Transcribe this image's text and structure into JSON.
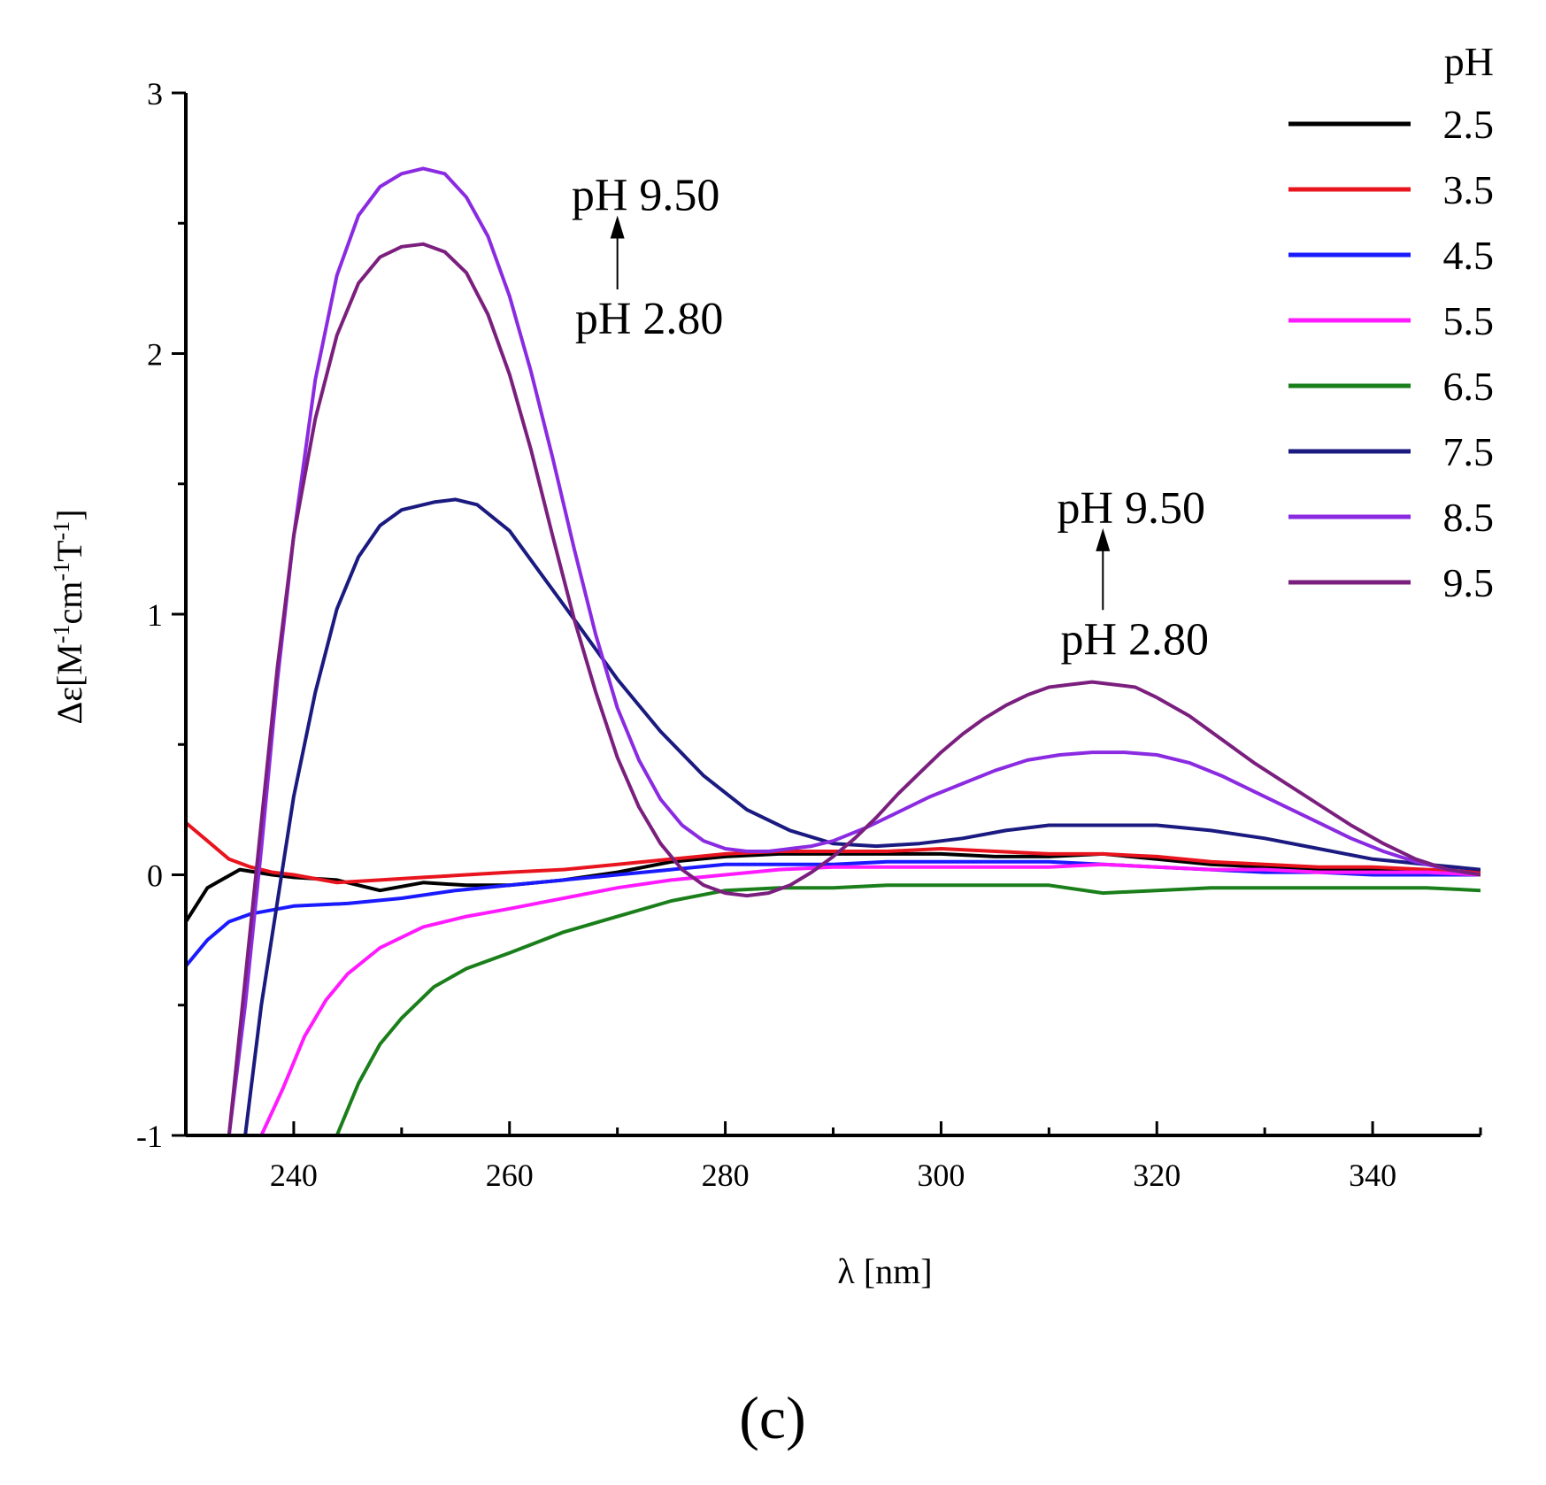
{
  "chart_data": {
    "type": "line",
    "title": "",
    "xlabel": "λ [nm]",
    "ylabel": "Δε[M-1cm-1T-1]",
    "xlim": [
      230,
      350
    ],
    "ylim": [
      -1,
      3
    ],
    "x_ticks": [
      240,
      260,
      280,
      300,
      320,
      340
    ],
    "y_ticks": [
      -1,
      0,
      1,
      2,
      3
    ],
    "grid": false,
    "legend_title": "pH",
    "legend_position": "top-right",
    "series": [
      {
        "name": "2.5",
        "color": "#000000",
        "x": [
          230,
          232,
          235,
          238,
          240,
          244,
          248,
          252,
          256,
          260,
          265,
          270,
          275,
          280,
          285,
          290,
          295,
          300,
          305,
          310,
          315,
          320,
          325,
          330,
          335,
          340,
          345,
          350
        ],
        "y": [
          -0.18,
          -0.05,
          0.02,
          0.0,
          -0.01,
          -0.02,
          -0.06,
          -0.03,
          -0.04,
          -0.04,
          -0.02,
          0.01,
          0.05,
          0.07,
          0.08,
          0.08,
          0.08,
          0.08,
          0.07,
          0.07,
          0.08,
          0.06,
          0.04,
          0.03,
          0.02,
          0.02,
          0.01,
          0.0
        ]
      },
      {
        "name": "3.5",
        "color": "#e8141e",
        "x": [
          230,
          232,
          234,
          236,
          238,
          240,
          244,
          248,
          252,
          256,
          260,
          265,
          270,
          275,
          280,
          285,
          290,
          295,
          300,
          305,
          310,
          315,
          320,
          325,
          330,
          335,
          340,
          345,
          350
        ],
        "y": [
          0.2,
          0.13,
          0.06,
          0.03,
          0.01,
          0.0,
          -0.03,
          -0.02,
          -0.01,
          0.0,
          0.01,
          0.02,
          0.04,
          0.06,
          0.08,
          0.09,
          0.09,
          0.09,
          0.1,
          0.09,
          0.08,
          0.08,
          0.07,
          0.05,
          0.04,
          0.03,
          0.03,
          0.02,
          0.01
        ]
      },
      {
        "name": "4.5",
        "color": "#1a1aff",
        "x": [
          230,
          232,
          234,
          236,
          240,
          245,
          250,
          255,
          260,
          265,
          270,
          275,
          280,
          285,
          290,
          295,
          300,
          305,
          310,
          315,
          320,
          325,
          330,
          335,
          340,
          345,
          350
        ],
        "y": [
          -0.35,
          -0.25,
          -0.18,
          -0.15,
          -0.12,
          -0.11,
          -0.09,
          -0.06,
          -0.04,
          -0.02,
          0.0,
          0.02,
          0.04,
          0.04,
          0.04,
          0.05,
          0.05,
          0.05,
          0.05,
          0.04,
          0.03,
          0.02,
          0.01,
          0.01,
          0.0,
          0.0,
          0.0
        ]
      },
      {
        "name": "5.5",
        "color": "#ff1aff",
        "x": [
          237,
          239,
          241,
          243,
          245,
          248,
          252,
          256,
          260,
          265,
          270,
          275,
          280,
          285,
          290,
          295,
          300,
          305,
          310,
          315,
          320,
          325,
          330,
          335,
          340,
          345,
          350
        ],
        "y": [
          -1.0,
          -0.82,
          -0.62,
          -0.48,
          -0.38,
          -0.28,
          -0.2,
          -0.16,
          -0.13,
          -0.09,
          -0.05,
          -0.02,
          0.0,
          0.02,
          0.03,
          0.03,
          0.03,
          0.03,
          0.03,
          0.04,
          0.03,
          0.02,
          0.02,
          0.01,
          0.01,
          0.01,
          0.0
        ]
      },
      {
        "name": "6.5",
        "color": "#1a7f1a",
        "x": [
          244,
          246,
          248,
          250,
          253,
          256,
          260,
          265,
          270,
          275,
          280,
          285,
          290,
          295,
          300,
          305,
          310,
          315,
          320,
          325,
          330,
          335,
          340,
          345,
          350
        ],
        "y": [
          -1.0,
          -0.8,
          -0.65,
          -0.55,
          -0.43,
          -0.36,
          -0.3,
          -0.22,
          -0.16,
          -0.1,
          -0.06,
          -0.05,
          -0.05,
          -0.04,
          -0.04,
          -0.04,
          -0.04,
          -0.07,
          -0.06,
          -0.05,
          -0.05,
          -0.05,
          -0.05,
          -0.05,
          -0.06
        ]
      },
      {
        "name": "7.5",
        "color": "#1a1a80",
        "x": [
          235.5,
          237,
          238.5,
          240,
          242,
          244,
          246,
          248,
          250,
          253,
          255,
          257,
          260,
          263,
          266,
          270,
          274,
          278,
          282,
          286,
          290,
          294,
          298,
          302,
          306,
          310,
          315,
          320,
          325,
          330,
          335,
          340,
          345,
          350
        ],
        "y": [
          -1.0,
          -0.5,
          -0.1,
          0.3,
          0.7,
          1.02,
          1.22,
          1.34,
          1.4,
          1.43,
          1.44,
          1.42,
          1.32,
          1.15,
          0.98,
          0.75,
          0.55,
          0.38,
          0.25,
          0.17,
          0.12,
          0.11,
          0.12,
          0.14,
          0.17,
          0.19,
          0.19,
          0.19,
          0.17,
          0.14,
          0.1,
          0.06,
          0.04,
          0.02
        ]
      },
      {
        "name": "8.5",
        "color": "#8a2be2",
        "x": [
          234,
          235.5,
          237,
          238.5,
          240,
          242,
          244,
          246,
          248,
          250,
          252,
          254,
          256,
          258,
          260,
          262,
          264,
          266,
          268,
          270,
          272,
          274,
          276,
          278,
          280,
          282,
          284,
          286,
          288,
          290,
          293,
          296,
          299,
          302,
          305,
          308,
          311,
          314,
          317,
          320,
          323,
          326,
          329,
          332,
          335,
          338,
          341,
          344,
          347,
          350
        ],
        "y": [
          -1.0,
          -0.5,
          0.1,
          0.75,
          1.3,
          1.9,
          2.3,
          2.53,
          2.64,
          2.69,
          2.71,
          2.69,
          2.6,
          2.45,
          2.22,
          1.93,
          1.6,
          1.25,
          0.92,
          0.64,
          0.44,
          0.29,
          0.19,
          0.13,
          0.1,
          0.09,
          0.09,
          0.1,
          0.11,
          0.13,
          0.18,
          0.24,
          0.3,
          0.35,
          0.4,
          0.44,
          0.46,
          0.47,
          0.47,
          0.46,
          0.43,
          0.38,
          0.32,
          0.26,
          0.2,
          0.14,
          0.09,
          0.05,
          0.02,
          0.0
        ]
      },
      {
        "name": "9.5",
        "color": "#7b1f7e",
        "x": [
          234,
          235.5,
          237,
          238.5,
          240,
          242,
          244,
          246,
          248,
          250,
          252,
          254,
          256,
          258,
          260,
          262,
          264,
          266,
          268,
          270,
          272,
          274,
          276,
          278,
          280,
          282,
          284,
          286,
          288,
          290,
          292,
          294,
          296,
          298,
          300,
          302,
          304,
          306,
          308,
          310,
          312,
          314,
          316,
          318,
          320,
          323,
          326,
          329,
          332,
          335,
          338,
          341,
          344,
          347,
          350
        ],
        "y": [
          -1.0,
          -0.4,
          0.2,
          0.8,
          1.3,
          1.75,
          2.07,
          2.27,
          2.37,
          2.41,
          2.42,
          2.39,
          2.31,
          2.15,
          1.92,
          1.63,
          1.3,
          0.98,
          0.7,
          0.45,
          0.26,
          0.12,
          0.02,
          -0.04,
          -0.07,
          -0.08,
          -0.07,
          -0.04,
          0.01,
          0.07,
          0.14,
          0.22,
          0.31,
          0.39,
          0.47,
          0.54,
          0.6,
          0.65,
          0.69,
          0.72,
          0.73,
          0.74,
          0.73,
          0.72,
          0.68,
          0.61,
          0.52,
          0.43,
          0.35,
          0.27,
          0.19,
          0.12,
          0.06,
          0.02,
          0.0
        ]
      }
    ],
    "annotations": [
      {
        "text_top": "pH 9.50",
        "text_bottom": "pH 2.80",
        "x": 270,
        "y_top": 2.55,
        "y_bottom": 2.28
      },
      {
        "text_top": "pH 9.50",
        "text_bottom": "pH 2.80",
        "x": 315,
        "y_top": 1.35,
        "y_bottom": 1.05
      }
    ]
  },
  "panel_label": "(c)",
  "ylabel_parts": {
    "base": "Δε[M",
    "sup1": "-1",
    "mid1": "cm",
    "sup2": "-1",
    "mid2": "T",
    "sup3": "-1",
    "end": "]"
  }
}
